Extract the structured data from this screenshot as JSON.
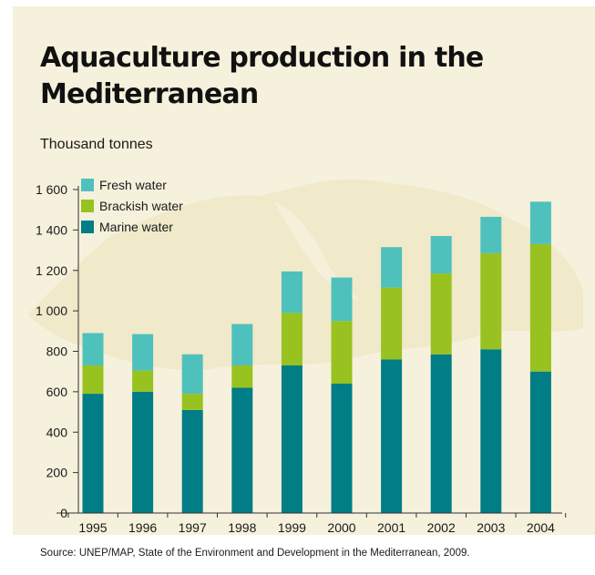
{
  "title": "Aquaculture production in the Mediterranean",
  "source": "Source: UNEP/MAP, State of the Environment and Development in the Mediterranean, 2009.",
  "colors": {
    "panel_background": "#f6f1dc",
    "fresh_water": "#4fc1bd",
    "brackish_water": "#98c21f",
    "marine_water": "#007d85"
  },
  "chart_data": {
    "type": "bar",
    "stacked": true,
    "title": "Aquaculture production in the Mediterranean",
    "ylabel": "Thousand tonnes",
    "xlabel": "",
    "ylim": [
      0,
      1600
    ],
    "yticks": [
      0,
      200,
      400,
      600,
      800,
      1000,
      1200,
      1400,
      1600
    ],
    "ytick_labels": [
      "0",
      "200",
      "400",
      "600",
      "800",
      "1 000",
      "1 200",
      "1 400",
      "1 600"
    ],
    "categories": [
      "1995",
      "1996",
      "1997",
      "1998",
      "1999",
      "2000",
      "2001",
      "2002",
      "2003",
      "2004"
    ],
    "legend_position": "top-left",
    "grid": false,
    "series": [
      {
        "name": "Marine water",
        "color": "#007d85",
        "values": [
          590,
          600,
          510,
          620,
          730,
          640,
          760,
          785,
          810,
          700
        ]
      },
      {
        "name": "Brackish water",
        "color": "#98c21f",
        "values": [
          140,
          105,
          80,
          110,
          260,
          310,
          355,
          400,
          475,
          630
        ]
      },
      {
        "name": "Fresh water",
        "color": "#4fc1bd",
        "values": [
          160,
          180,
          195,
          205,
          205,
          215,
          200,
          185,
          180,
          210
        ]
      }
    ],
    "legend_order": [
      "Fresh water",
      "Brackish water",
      "Marine water"
    ]
  }
}
